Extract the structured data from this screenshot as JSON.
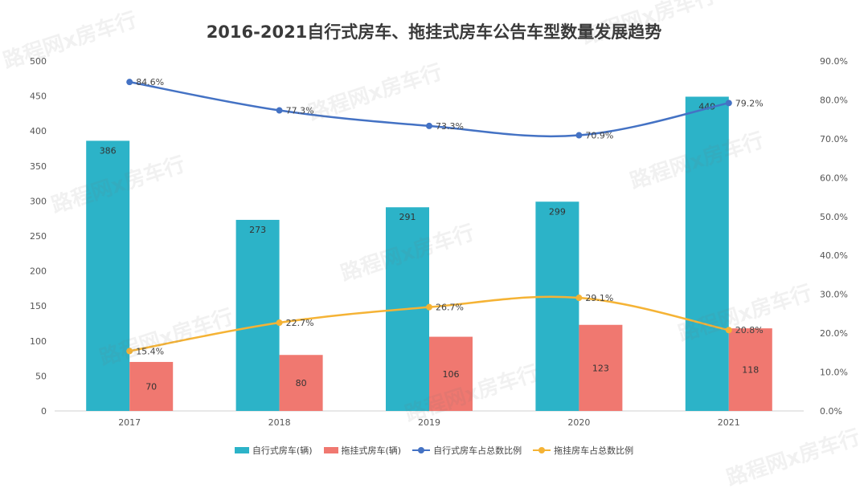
{
  "watermark_text": "路程网x房车行",
  "chart_data": {
    "type": "bar",
    "title": "2016-2021自行式房车、拖挂式房车公告车型数量发展趋势",
    "categories": [
      "2017",
      "2018",
      "2019",
      "2020",
      "2021"
    ],
    "series": [
      {
        "name": "自行式房车(辆)",
        "kind": "bar",
        "axis": "left",
        "color": "#2cb3c8",
        "values": [
          386,
          273,
          291,
          299,
          449
        ],
        "labels": [
          "386",
          "273",
          "291",
          "299",
          "449"
        ]
      },
      {
        "name": "拖挂式房车(辆)",
        "kind": "bar",
        "axis": "left",
        "color": "#f07870",
        "values": [
          70,
          80,
          106,
          123,
          118
        ],
        "labels": [
          "70",
          "80",
          "106",
          "123",
          "118"
        ]
      },
      {
        "name": "自行式房车占总数比例",
        "kind": "line",
        "axis": "right",
        "color": "#4472c4",
        "values": [
          84.6,
          77.3,
          73.3,
          70.9,
          79.2
        ],
        "labels": [
          "84.6%",
          "77.3%",
          "73.3%",
          "70.9%",
          "79.2%"
        ]
      },
      {
        "name": "拖挂房车占总数比例",
        "kind": "line",
        "axis": "right",
        "color": "#f5b335",
        "values": [
          15.4,
          22.7,
          26.7,
          29.1,
          20.8
        ],
        "labels": [
          "15.4%",
          "22.7%",
          "26.7%",
          "29.1%",
          "20.8%"
        ]
      }
    ],
    "y_left": {
      "min": 0,
      "max": 500,
      "ticks": [
        "0",
        "50",
        "100",
        "150",
        "200",
        "250",
        "300",
        "350",
        "400",
        "450",
        "500"
      ]
    },
    "y_right": {
      "min": 0,
      "max": 90,
      "ticks": [
        "0.0%",
        "10.0%",
        "20.0%",
        "30.0%",
        "40.0%",
        "50.0%",
        "60.0%",
        "70.0%",
        "80.0%",
        "90.0%"
      ]
    },
    "grid": false,
    "legend_position": "bottom"
  }
}
